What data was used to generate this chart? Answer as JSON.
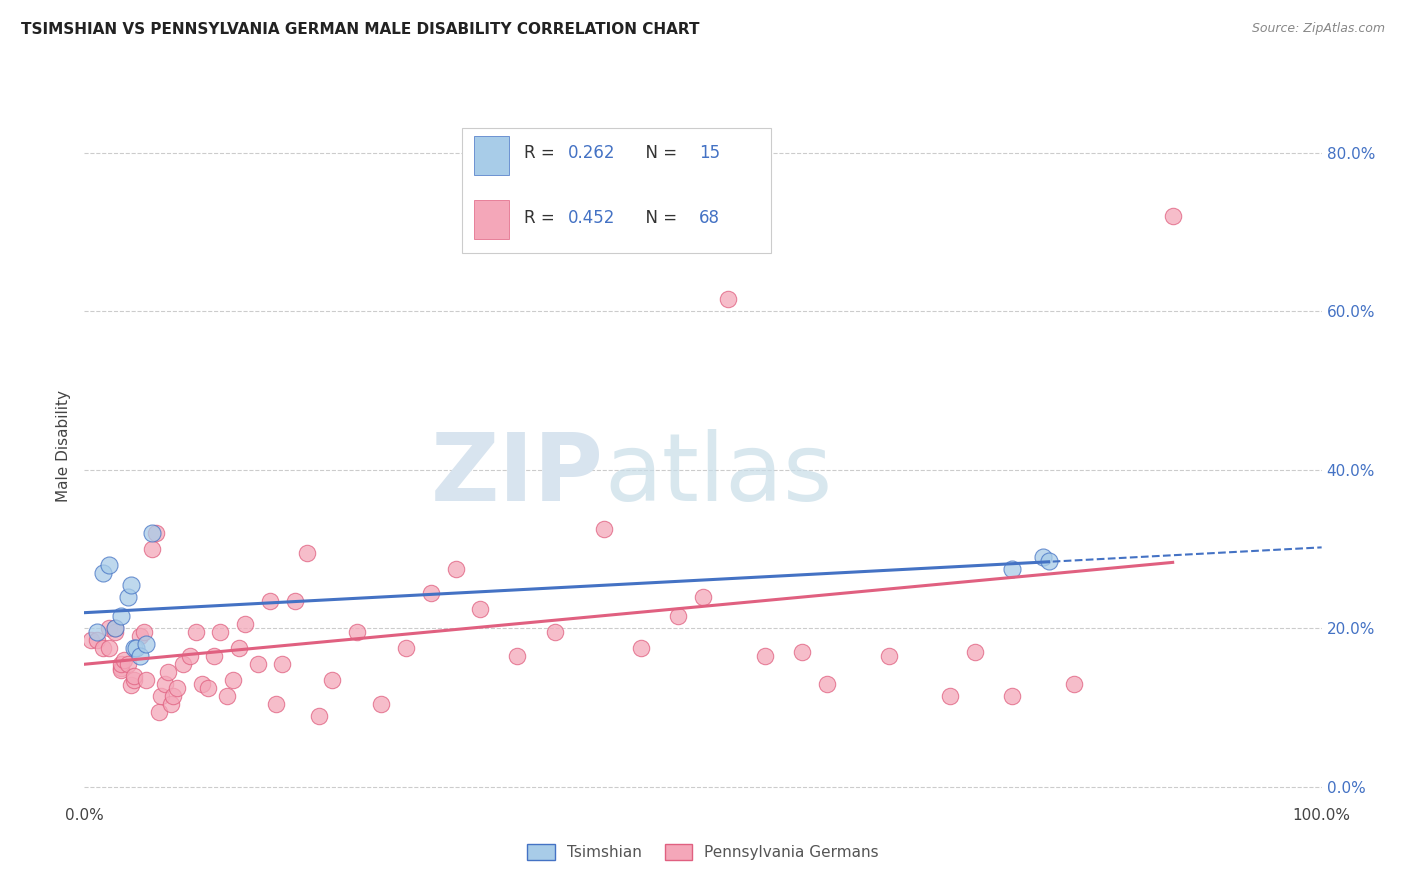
{
  "title": "TSIMSHIAN VS PENNSYLVANIA GERMAN MALE DISABILITY CORRELATION CHART",
  "source": "Source: ZipAtlas.com",
  "ylabel": "Male Disability",
  "legend_r1": "0.262",
  "legend_n1": "15",
  "legend_r2": "0.452",
  "legend_n2": "68",
  "legend_label1": "Tsimshian",
  "legend_label2": "Pennsylvania Germans",
  "xmin": 0.0,
  "xmax": 1.0,
  "ymin": -0.02,
  "ymax": 0.88,
  "yticks": [
    0.0,
    0.2,
    0.4,
    0.6,
    0.8
  ],
  "ytick_labels": [
    "0.0%",
    "20.0%",
    "40.0%",
    "60.0%",
    "80.0%"
  ],
  "xticks": [
    0.0,
    1.0
  ],
  "xtick_labels": [
    "0.0%",
    "100.0%"
  ],
  "color_blue": "#a8cce8",
  "color_pink": "#f4a7b9",
  "line_blue": "#4472c4",
  "line_pink": "#e06080",
  "background": "#ffffff",
  "grid_color": "#cccccc",
  "tsimshian_x": [
    0.01,
    0.015,
    0.02,
    0.025,
    0.03,
    0.035,
    0.038,
    0.04,
    0.042,
    0.045,
    0.05,
    0.055,
    0.75,
    0.775,
    0.78
  ],
  "tsimshian_y": [
    0.195,
    0.27,
    0.28,
    0.2,
    0.215,
    0.24,
    0.255,
    0.175,
    0.175,
    0.165,
    0.18,
    0.32,
    0.275,
    0.29,
    0.285
  ],
  "penn_german_x": [
    0.005,
    0.01,
    0.015,
    0.02,
    0.02,
    0.025,
    0.025,
    0.03,
    0.03,
    0.03,
    0.032,
    0.035,
    0.038,
    0.04,
    0.04,
    0.045,
    0.048,
    0.05,
    0.055,
    0.058,
    0.06,
    0.062,
    0.065,
    0.068,
    0.07,
    0.072,
    0.075,
    0.08,
    0.085,
    0.09,
    0.095,
    0.1,
    0.105,
    0.11,
    0.115,
    0.12,
    0.125,
    0.13,
    0.14,
    0.15,
    0.155,
    0.16,
    0.17,
    0.18,
    0.19,
    0.2,
    0.22,
    0.24,
    0.26,
    0.28,
    0.3,
    0.32,
    0.35,
    0.38,
    0.42,
    0.45,
    0.48,
    0.5,
    0.52,
    0.55,
    0.58,
    0.6,
    0.65,
    0.7,
    0.72,
    0.75,
    0.8,
    0.88
  ],
  "penn_german_y": [
    0.185,
    0.185,
    0.175,
    0.175,
    0.2,
    0.195,
    0.2,
    0.15,
    0.148,
    0.155,
    0.16,
    0.155,
    0.128,
    0.135,
    0.14,
    0.19,
    0.195,
    0.135,
    0.3,
    0.32,
    0.095,
    0.115,
    0.13,
    0.145,
    0.105,
    0.115,
    0.125,
    0.155,
    0.165,
    0.195,
    0.13,
    0.125,
    0.165,
    0.195,
    0.115,
    0.135,
    0.175,
    0.205,
    0.155,
    0.235,
    0.105,
    0.155,
    0.235,
    0.295,
    0.09,
    0.135,
    0.195,
    0.105,
    0.175,
    0.245,
    0.275,
    0.225,
    0.165,
    0.195,
    0.325,
    0.175,
    0.215,
    0.24,
    0.615,
    0.165,
    0.17,
    0.13,
    0.165,
    0.115,
    0.17,
    0.115,
    0.13,
    0.72
  ]
}
